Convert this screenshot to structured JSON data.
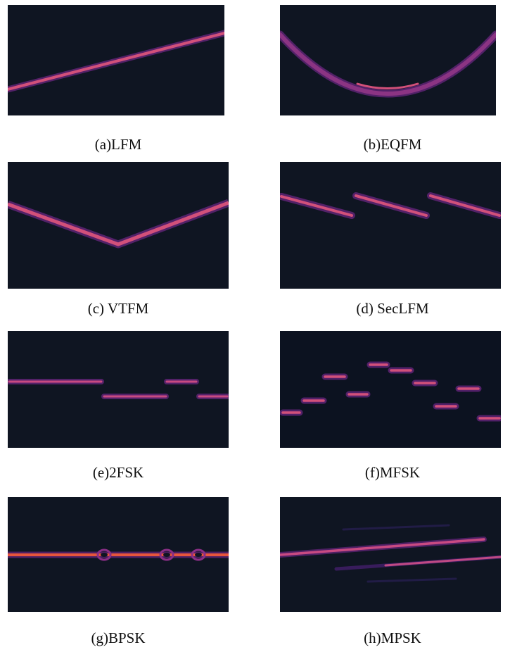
{
  "figure": {
    "captions": {
      "lfm": "(a)LFM",
      "eqfm": "(b)EQFM",
      "vtfm": "(c) VTFM",
      "seclfm": "(d) SecLFM",
      "fsk2": "(e)2FSK",
      "mfsk": "(f)MFSK",
      "bpsk": "(g)BPSK",
      "mpsk": "(h)MPSK"
    },
    "colors": {
      "background": "#0f1522",
      "trace_core": "#e0557a",
      "trace_glow": "#7a2a8e",
      "bpsk_core": "#f0603a"
    }
  }
}
